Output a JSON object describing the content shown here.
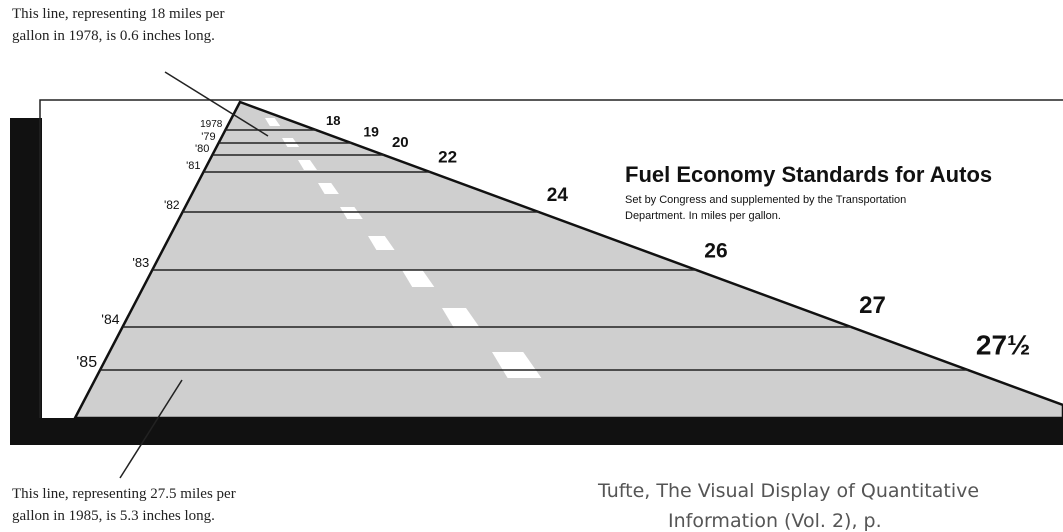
{
  "chart_data": {
    "type": "road",
    "title": "Fuel Economy Standards for Autos",
    "subtitle": "Set by Congress and supplemented by the Transportation Department. In miles per gallon.",
    "categories": [
      "1978",
      "'79",
      "'80",
      "'81",
      "'82",
      "'83",
      "'84",
      "'85"
    ],
    "values": [
      18,
      19,
      20,
      22,
      24,
      26,
      27,
      27.5
    ],
    "value_labels": [
      "18",
      "19",
      "20",
      "22",
      "24",
      "26",
      "27",
      "27½"
    ],
    "annotations": [
      "This line, representing 18 miles per",
      "gallon in 1978, is 0.6 inches long.",
      "This line, representing 27.5 miles per",
      "gallon in 1985, is 5.3 inches long."
    ],
    "caption": [
      "Tufte, The Visual Display of Quantitative",
      "Information (Vol. 2), p."
    ]
  }
}
